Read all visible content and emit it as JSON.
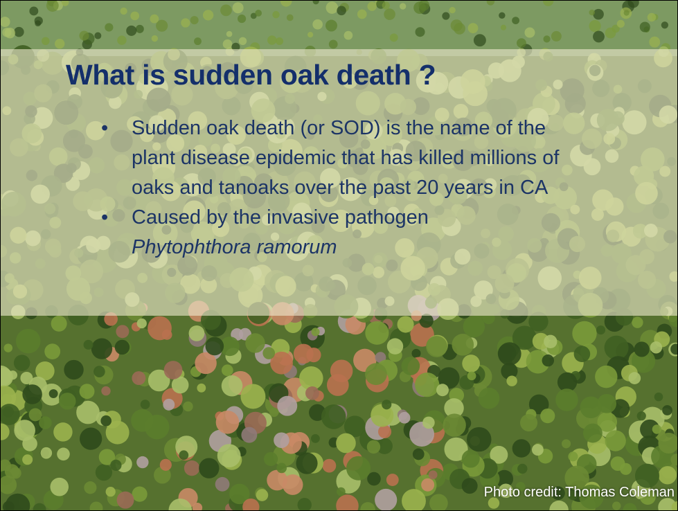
{
  "slide": {
    "title": "What is sudden oak death ?",
    "bullets": [
      {
        "text": "Sudden oak death (or SOD) is the name of the plant disease epidemic that has killed millions of oaks and tanoaks over the past 20 years in CA"
      },
      {
        "text": "Caused by the invasive pathogen",
        "italic": "Phytophthora ramorum"
      }
    ],
    "photo_credit": "Photo credit: Thomas Coleman"
  }
}
